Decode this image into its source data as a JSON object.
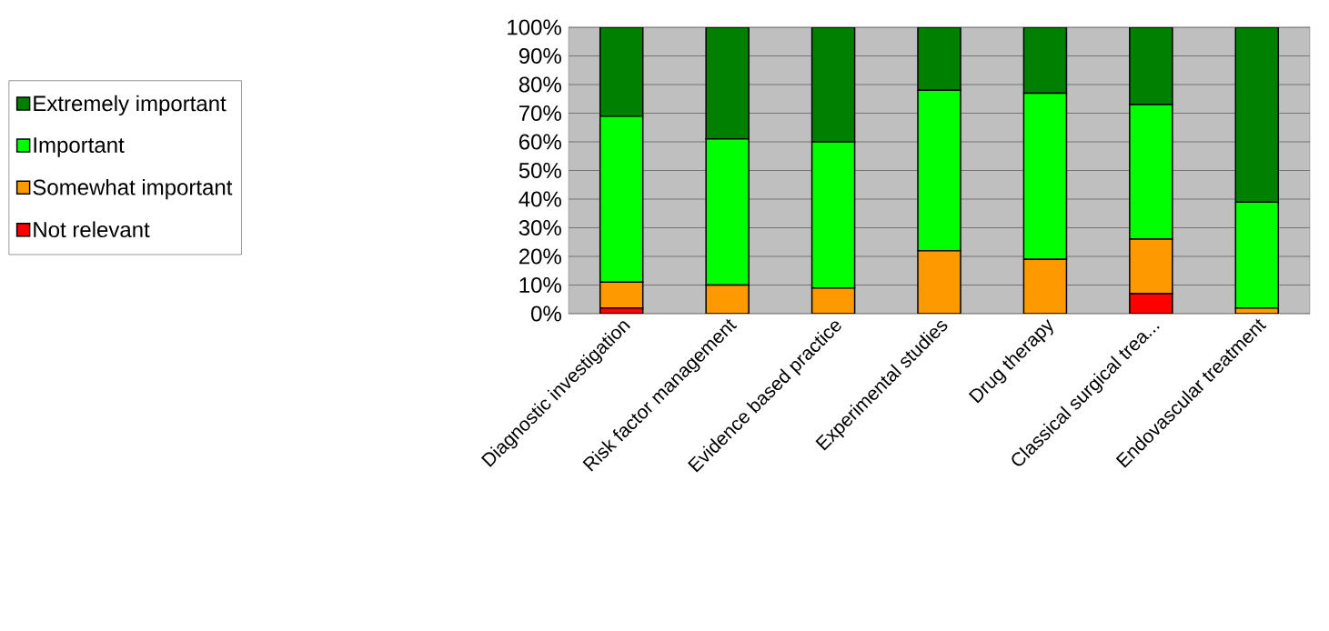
{
  "chart_data": {
    "type": "bar",
    "stacked": true,
    "categories": [
      "Diagnostic investigation",
      "Risk factor management",
      "Evidence based practice",
      "Experimental studies",
      "Drug therapy",
      "Classical surgical trea...",
      "Endovascular treatment"
    ],
    "series": [
      {
        "name": "Not relevant",
        "color": "#ff0000",
        "values": [
          2,
          0,
          0,
          null,
          null,
          7,
          0
        ]
      },
      {
        "name": "Somewhat important",
        "color": "#ff9900",
        "values": [
          9,
          10,
          9,
          22,
          19,
          19,
          2
        ]
      },
      {
        "name": "Important",
        "color": "#00ff00",
        "values": [
          58,
          51,
          51,
          56,
          58,
          47,
          37
        ]
      },
      {
        "name": "Extremely important",
        "color": "#008000",
        "values": [
          31,
          39,
          40,
          22,
          23,
          27,
          61
        ]
      }
    ],
    "ylim": [
      0,
      100
    ],
    "yticks": [
      {
        "value": 0,
        "label": "0%"
      },
      {
        "value": 10,
        "label": "10%"
      },
      {
        "value": 20,
        "label": "20%"
      },
      {
        "value": 30,
        "label": "30%"
      },
      {
        "value": 40,
        "label": "40%"
      },
      {
        "value": 50,
        "label": "50%"
      },
      {
        "value": 60,
        "label": "60%"
      },
      {
        "value": 70,
        "label": "70%"
      },
      {
        "value": 80,
        "label": "80%"
      },
      {
        "value": 90,
        "label": "90%"
      },
      {
        "value": 100,
        "label": "100%"
      }
    ],
    "grid": "y",
    "legend": "left"
  }
}
